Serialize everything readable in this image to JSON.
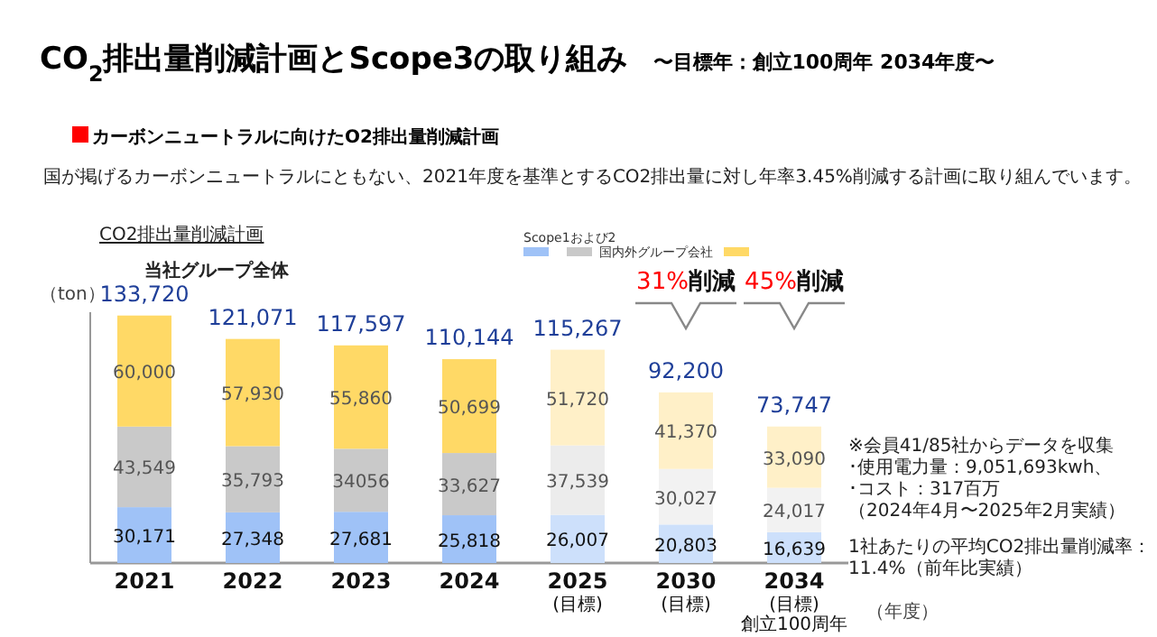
{
  "chart_data": {
    "type": "bar",
    "stacked": true,
    "title": "CO$_{2}$排出量削減計画とScope3の取り組み",
    "subtitle": "〜目標年：創立100周年 2034年度〜",
    "ylabel": "（ton）",
    "xlabel": "（年度）",
    "legend_title": "Scope1および2",
    "legend": "top",
    "categories": [
      "2021",
      "2022",
      "2023",
      "2024",
      "2025 (目標)",
      "2030 (目標)",
      "2034 (目標) 創立100周年"
    ],
    "series": [
      {
        "colors": [
          "#9fc2f7",
          "#9fc2f7",
          "#9fc2f7",
          "#9fc2f7",
          "#cde0fb",
          "#cde0fb",
          "#cde0fb"
        ],
        "values": [
          30171,
          27348,
          27681,
          25818,
          26007,
          20803,
          16639
        ],
        "value_labels": [
          "30,171",
          "27,348",
          "27,681",
          "25,818",
          "26,007",
          "20,803",
          "16,639"
        ]
      },
      {
        "name": "国内外グループ会社",
        "colors": [
          "#c9c9c9",
          "#c9c9c9",
          "#c9c9c9",
          "#c9c9c9",
          "#ececec",
          "#f2f2f2",
          "#f2f2f2"
        ],
        "values": [
          43549,
          35793,
          34056,
          33627,
          37539,
          30027,
          24017
        ],
        "value_labels": [
          "43,549",
          "35,793",
          "34056",
          "33,627",
          "37,539",
          "30,027",
          "24,017"
        ]
      },
      {
        "colors": [
          "#ffd966",
          "#ffd966",
          "#ffd966",
          "#ffd966",
          "#fff0c8",
          "#fff0c8",
          "#fff0c8"
        ],
        "values": [
          60000,
          57930,
          55860,
          50699,
          51720,
          41370,
          33090
        ],
        "value_labels": [
          "60,000",
          "57,930",
          "55,860",
          "50,699",
          "51,720",
          "41,370",
          "33,090"
        ]
      }
    ],
    "totals": [
      "133,720",
      "121,071",
      "117,597",
      "110,144",
      "115,267",
      "92,200",
      "73,747"
    ],
    "tick_labels": "x",
    "annotations": [
      "31%削減",
      "45%削減",
      "カーボンニュートラルに向けたO2排出量削減計画",
      "国が掲げるカーボンニュートラルにともない、2021年度を基準とするCO2排出量に対し年率3.45%削減する計画に取り組んでいます。",
      "CO2排出量削減計画",
      "当社グループ全体",
      "※会員41/85社からデータを収集",
      "･使用電力量：9,051,693kwh、",
      "･コスト：317百万",
      "（2024年4月〜2025年2月実績）",
      "1社あたりの平均CO2排出量削減率：",
      "11.4%（前年比実績）"
    ]
  }
}
